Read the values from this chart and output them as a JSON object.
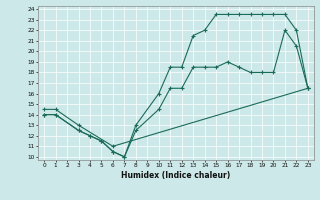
{
  "title": "",
  "xlabel": "Humidex (Indice chaleur)",
  "bg_color": "#cde8e8",
  "grid_color": "#ffffff",
  "line_color": "#1a6b5a",
  "xlim": [
    -0.5,
    23.5
  ],
  "ylim": [
    9.7,
    24.3
  ],
  "xticks": [
    0,
    1,
    2,
    3,
    4,
    5,
    6,
    7,
    8,
    9,
    10,
    11,
    12,
    13,
    14,
    15,
    16,
    17,
    18,
    19,
    20,
    21,
    22,
    23
  ],
  "yticks": [
    10,
    11,
    12,
    13,
    14,
    15,
    16,
    17,
    18,
    19,
    20,
    21,
    22,
    23,
    24
  ],
  "line1_x": [
    0,
    1,
    3,
    4,
    5,
    6,
    7,
    8,
    10,
    11,
    12,
    13,
    14,
    15,
    16,
    17,
    18,
    19,
    20,
    21,
    22,
    23
  ],
  "line1_y": [
    14,
    14,
    12.5,
    12,
    11.5,
    10.5,
    10,
    12.5,
    14.5,
    16.5,
    16.5,
    18.5,
    18.5,
    18.5,
    19,
    18.5,
    18,
    18,
    18,
    22,
    20.5,
    16.5
  ],
  "line2_x": [
    0,
    1,
    3,
    4,
    5,
    6,
    7,
    8,
    10,
    11,
    12,
    13,
    14,
    15,
    16,
    17,
    18,
    19,
    20,
    21,
    22,
    23
  ],
  "line2_y": [
    14,
    14,
    12.5,
    12,
    11.5,
    10.5,
    10,
    13,
    16,
    18.5,
    18.5,
    21.5,
    22,
    23.5,
    23.5,
    23.5,
    23.5,
    23.5,
    23.5,
    23.5,
    22,
    16.5
  ],
  "line3_x": [
    0,
    1,
    3,
    6,
    23
  ],
  "line3_y": [
    14.5,
    14.5,
    13,
    11,
    16.5
  ]
}
